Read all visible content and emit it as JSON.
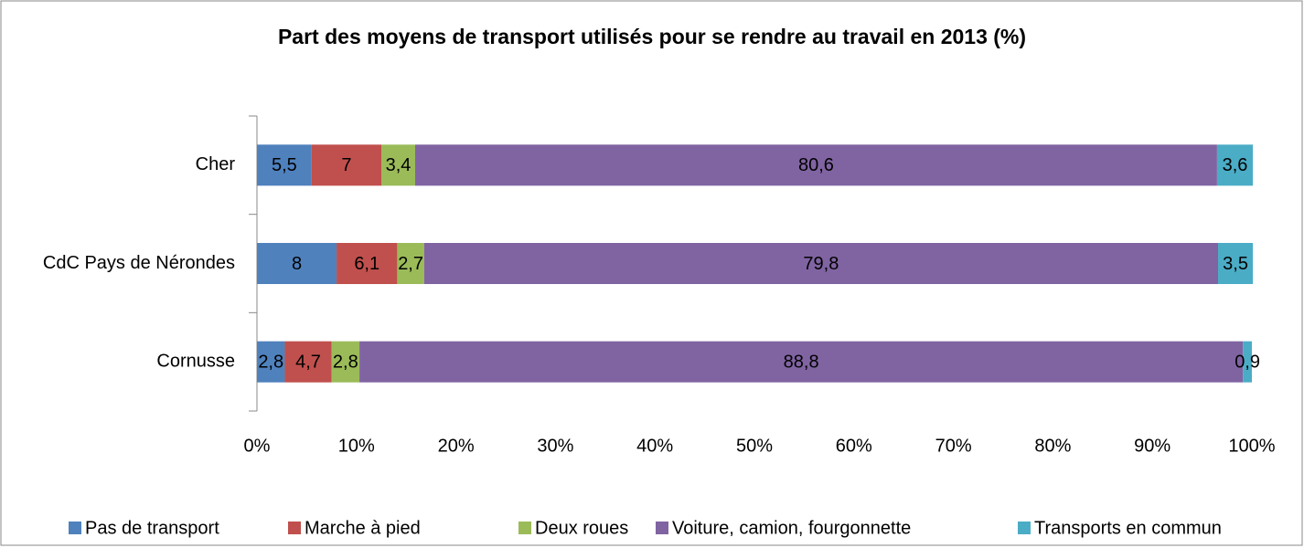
{
  "chart_data": {
    "type": "bar-stacked-horizontal",
    "title": "Part des moyens de transport utilisés pour se rendre au travail en 2013 (%)",
    "categories": [
      "Cher",
      "CdC Pays de Nérondes",
      "Cornusse"
    ],
    "series": [
      {
        "name": "Pas de transport",
        "color": "#4f81bd",
        "values": [
          5.5,
          8,
          2.8
        ],
        "value_labels": [
          "5,5",
          "8",
          "2,8"
        ]
      },
      {
        "name": "Marche à pied",
        "color": "#c0504d",
        "values": [
          7,
          6.1,
          4.7
        ],
        "value_labels": [
          "7",
          "6,1",
          "4,7"
        ]
      },
      {
        "name": "Deux roues",
        "color": "#9bbb59",
        "values": [
          3.4,
          2.7,
          2.8
        ],
        "value_labels": [
          "3,4",
          "2,7",
          "2,8"
        ]
      },
      {
        "name": "Voiture, camion, fourgonnette",
        "color": "#8064a2",
        "values": [
          80.6,
          79.8,
          88.8
        ],
        "value_labels": [
          "80,6",
          "79,8",
          "88,8"
        ]
      },
      {
        "name": "Transports en commun",
        "color": "#4bacc6",
        "values": [
          3.6,
          3.5,
          0.9
        ],
        "value_labels": [
          "3,6",
          "3,5",
          "0,9"
        ]
      }
    ],
    "xlim": [
      0,
      100
    ],
    "xticks": [
      {
        "value": 0,
        "label": "0%"
      },
      {
        "value": 10,
        "label": "10%"
      },
      {
        "value": 20,
        "label": "20%"
      },
      {
        "value": 30,
        "label": "30%"
      },
      {
        "value": 40,
        "label": "40%"
      },
      {
        "value": 50,
        "label": "50%"
      },
      {
        "value": 60,
        "label": "60%"
      },
      {
        "value": 70,
        "label": "70%"
      },
      {
        "value": 80,
        "label": "80%"
      },
      {
        "value": 90,
        "label": "90%"
      },
      {
        "value": 100,
        "label": "100%"
      }
    ],
    "legend": "bottom"
  }
}
